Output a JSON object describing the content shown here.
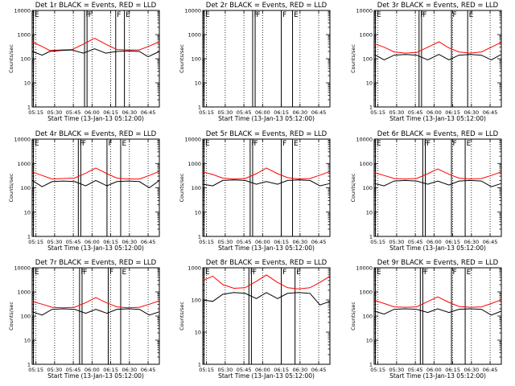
{
  "colors": {
    "black_series": "#000000",
    "red_series": "#ff0000",
    "axes": "#000000",
    "background": "#ffffff"
  },
  "chart_data": [
    {
      "type": "line",
      "title": "Det 1r BLACK = Events, RED = LLD",
      "xlabel": "Start Time (13-Jan-13 05:12:00)",
      "ylabel": "Counts/sec",
      "yscale": "log",
      "ylim": [
        1,
        10000
      ],
      "xlim": [
        "05:12",
        "06:54"
      ],
      "x_ticks": [
        "05:15",
        "05:30",
        "05:45",
        "06:00",
        "06:15",
        "06:30",
        "06:45"
      ],
      "y_ticks": [
        "1",
        "10",
        "100",
        "1000",
        "10000"
      ],
      "vertical_markers": [
        {
          "time": "05:13",
          "label": "E"
        },
        {
          "time": "05:54",
          "label": "F"
        },
        {
          "time": "05:56",
          "label": "F"
        },
        {
          "time": "06:19",
          "label": "F"
        },
        {
          "time": "06:26",
          "label": "E"
        }
      ],
      "series": [
        {
          "color": "red",
          "x": [
            "05:12",
            "05:20",
            "05:26",
            "05:35",
            "05:44",
            "05:53",
            "06:02",
            "06:11",
            "06:20",
            "06:29",
            "06:38",
            "06:45",
            "06:54"
          ],
          "y": [
            500,
            320,
            220,
            230,
            240,
            400,
            700,
            400,
            240,
            230,
            230,
            320,
            500
          ]
        },
        {
          "color": "black",
          "x": [
            "05:12",
            "05:20",
            "05:26",
            "05:35",
            "05:44",
            "05:53",
            "06:02",
            "06:11",
            "06:20",
            "06:29",
            "06:38",
            "06:45",
            "06:54"
          ],
          "y": [
            200,
            140,
            200,
            220,
            230,
            170,
            260,
            170,
            200,
            210,
            200,
            120,
            200
          ]
        }
      ]
    },
    {
      "type": "line",
      "title": "Det 2r BLACK = Events, RED = LLD",
      "xlabel": "Start Time (13-Jan-13 05:12:00)",
      "ylabel": "Counts/sec",
      "yscale": "log",
      "ylim": [
        1,
        10000
      ],
      "xlim": [
        "05:12",
        "06:54"
      ],
      "x_ticks": [
        "05:15",
        "05:30",
        "05:45",
        "06:00",
        "06:15",
        "06:30",
        "06:45"
      ],
      "y_ticks": [
        "1",
        "10",
        "100",
        "1000",
        "10000"
      ],
      "vertical_markers": [
        {
          "time": "05:13",
          "label": "E"
        },
        {
          "time": "05:52",
          "label": "F"
        },
        {
          "time": "05:54",
          "label": "F"
        },
        {
          "time": "06:15",
          "label": "F"
        },
        {
          "time": "06:24",
          "label": "E"
        }
      ],
      "series": []
    },
    {
      "type": "line",
      "title": "Det 3r BLACK = Events, RED = LLD",
      "xlabel": "Start Time (13-Jan-13 05:12:00)",
      "ylabel": "Counts/sec",
      "yscale": "log",
      "ylim": [
        1,
        10000
      ],
      "xlim": [
        "05:12",
        "06:54"
      ],
      "x_ticks": [
        "05:15",
        "05:30",
        "05:45",
        "06:00",
        "06:15",
        "06:30",
        "06:45"
      ],
      "y_ticks": [
        "1",
        "10",
        "100",
        "1000",
        "10000"
      ],
      "vertical_markers": [
        {
          "time": "05:13",
          "label": "E"
        },
        {
          "time": "05:48",
          "label": "F"
        },
        {
          "time": "05:50",
          "label": "F"
        },
        {
          "time": "06:14",
          "label": "F"
        },
        {
          "time": "06:27",
          "label": "E"
        }
      ],
      "series": [
        {
          "color": "red",
          "x": [
            "05:12",
            "05:20",
            "05:28",
            "05:37",
            "05:46",
            "05:55",
            "06:04",
            "06:12",
            "06:20",
            "06:29",
            "06:38",
            "06:46",
            "06:54"
          ],
          "y": [
            420,
            300,
            190,
            170,
            180,
            300,
            500,
            280,
            190,
            170,
            190,
            300,
            480
          ]
        },
        {
          "color": "black",
          "x": [
            "05:12",
            "05:20",
            "05:28",
            "05:37",
            "05:46",
            "05:55",
            "06:04",
            "06:12",
            "06:20",
            "06:29",
            "06:38",
            "06:46",
            "06:54"
          ],
          "y": [
            150,
            90,
            140,
            150,
            140,
            90,
            150,
            90,
            140,
            150,
            140,
            90,
            150
          ]
        }
      ]
    },
    {
      "type": "line",
      "title": "Det 4r BLACK = Events, RED = LLD",
      "xlabel": "Start Time (13-Jan-13 05:12:00)",
      "ylabel": "Counts/sec",
      "yscale": "log",
      "ylim": [
        1,
        10000
      ],
      "xlim": [
        "05:12",
        "06:54"
      ],
      "x_ticks": [
        "05:15",
        "05:30",
        "05:45",
        "06:00",
        "06:15",
        "06:30",
        "06:45"
      ],
      "y_ticks": [
        "1",
        "10",
        "100",
        "1000",
        "10000"
      ],
      "vertical_markers": [
        {
          "time": "05:13",
          "label": "E"
        },
        {
          "time": "05:49",
          "label": "F"
        },
        {
          "time": "05:51",
          "label": "F"
        },
        {
          "time": "06:12",
          "label": "F"
        },
        {
          "time": "06:23",
          "label": "E"
        }
      ],
      "series": [
        {
          "color": "red",
          "x": [
            "05:12",
            "05:20",
            "05:28",
            "05:37",
            "05:46",
            "05:55",
            "06:03",
            "06:12",
            "06:20",
            "06:29",
            "06:38",
            "06:46",
            "06:54"
          ],
          "y": [
            450,
            320,
            230,
            240,
            250,
            400,
            650,
            380,
            250,
            230,
            230,
            320,
            480
          ]
        },
        {
          "color": "black",
          "x": [
            "05:12",
            "05:20",
            "05:28",
            "05:37",
            "05:46",
            "05:55",
            "06:03",
            "06:12",
            "06:20",
            "06:29",
            "06:38",
            "06:46",
            "06:54"
          ],
          "y": [
            200,
            110,
            180,
            190,
            180,
            120,
            200,
            120,
            180,
            190,
            180,
            100,
            200
          ]
        }
      ]
    },
    {
      "type": "line",
      "title": "Det 5r BLACK = Events, RED = LLD",
      "xlabel": "Start Time (13-Jan-13 05:12:00)",
      "ylabel": "Counts/sec",
      "yscale": "log",
      "ylim": [
        1,
        10000
      ],
      "xlim": [
        "05:12",
        "06:54"
      ],
      "x_ticks": [
        "05:15",
        "05:30",
        "05:45",
        "06:00",
        "06:15",
        "06:30",
        "06:45"
      ],
      "y_ticks": [
        "1",
        "10",
        "100",
        "1000",
        "10000"
      ],
      "vertical_markers": [
        {
          "time": "05:13",
          "label": "E"
        },
        {
          "time": "05:50",
          "label": "F"
        },
        {
          "time": "05:52",
          "label": "F"
        },
        {
          "time": "06:15",
          "label": "F"
        },
        {
          "time": "06:24",
          "label": "E"
        }
      ],
      "series": [
        {
          "color": "red",
          "x": [
            "05:12",
            "05:20",
            "05:28",
            "05:37",
            "05:46",
            "05:55",
            "06:03",
            "06:12",
            "06:20",
            "06:29",
            "06:38",
            "06:46",
            "06:54"
          ],
          "y": [
            450,
            350,
            250,
            230,
            240,
            380,
            650,
            380,
            260,
            230,
            240,
            330,
            470
          ]
        },
        {
          "color": "black",
          "x": [
            "05:12",
            "05:20",
            "05:28",
            "05:37",
            "05:46",
            "05:55",
            "06:03",
            "06:12",
            "06:20",
            "06:29",
            "06:38",
            "06:46",
            "06:54"
          ],
          "y": [
            140,
            120,
            200,
            210,
            200,
            140,
            180,
            140,
            200,
            210,
            200,
            120,
            150
          ]
        }
      ]
    },
    {
      "type": "line",
      "title": "Det 6r BLACK = Events, RED = LLD",
      "xlabel": "Start Time (13-Jan-13 05:12:00)",
      "ylabel": "Counts/sec",
      "yscale": "log",
      "ylim": [
        1,
        10000
      ],
      "xlim": [
        "05:12",
        "06:54"
      ],
      "x_ticks": [
        "05:15",
        "05:30",
        "05:45",
        "06:00",
        "06:15",
        "06:30",
        "06:45"
      ],
      "y_ticks": [
        "1",
        "10",
        "100",
        "1000",
        "10000"
      ],
      "vertical_markers": [
        {
          "time": "05:13",
          "label": "E"
        },
        {
          "time": "05:51",
          "label": "F"
        },
        {
          "time": "05:53",
          "label": "F"
        },
        {
          "time": "06:14",
          "label": "F"
        },
        {
          "time": "06:25",
          "label": "E"
        }
      ],
      "series": [
        {
          "color": "red",
          "x": [
            "05:12",
            "05:20",
            "05:28",
            "05:37",
            "05:46",
            "05:55",
            "06:03",
            "06:12",
            "06:20",
            "06:29",
            "06:38",
            "06:46",
            "06:54"
          ],
          "y": [
            420,
            320,
            240,
            230,
            240,
            380,
            600,
            360,
            250,
            230,
            240,
            320,
            450
          ]
        },
        {
          "color": "black",
          "x": [
            "05:12",
            "05:20",
            "05:28",
            "05:37",
            "05:46",
            "05:55",
            "06:03",
            "06:12",
            "06:20",
            "06:29",
            "06:38",
            "06:46",
            "06:54"
          ],
          "y": [
            150,
            120,
            190,
            200,
            190,
            140,
            190,
            130,
            190,
            200,
            190,
            110,
            150
          ]
        }
      ]
    },
    {
      "type": "line",
      "title": "Det 7r BLACK = Events, RED = LLD",
      "xlabel": "Start Time (13-Jan-13 05:12:00)",
      "ylabel": "Counts/sec",
      "yscale": "log",
      "ylim": [
        1,
        10000
      ],
      "xlim": [
        "05:12",
        "06:54"
      ],
      "x_ticks": [
        "05:15",
        "05:30",
        "05:45",
        "06:00",
        "06:15",
        "06:30",
        "06:45"
      ],
      "y_ticks": [
        "1",
        "10",
        "100",
        "1000",
        "10000"
      ],
      "vertical_markers": [
        {
          "time": "05:13",
          "label": "E"
        },
        {
          "time": "05:50",
          "label": "F"
        },
        {
          "time": "05:52",
          "label": "F"
        },
        {
          "time": "06:13",
          "label": "F"
        },
        {
          "time": "06:23",
          "label": "E"
        }
      ],
      "series": [
        {
          "color": "red",
          "x": [
            "05:12",
            "05:20",
            "05:28",
            "05:37",
            "05:46",
            "05:55",
            "06:03",
            "06:12",
            "06:20",
            "06:29",
            "06:38",
            "06:46",
            "06:54"
          ],
          "y": [
            400,
            310,
            230,
            220,
            230,
            360,
            580,
            350,
            240,
            220,
            230,
            310,
            430
          ]
        },
        {
          "color": "black",
          "x": [
            "05:12",
            "05:20",
            "05:28",
            "05:37",
            "05:46",
            "05:55",
            "06:03",
            "06:12",
            "06:20",
            "06:29",
            "06:38",
            "06:46",
            "06:54"
          ],
          "y": [
            150,
            110,
            190,
            200,
            190,
            130,
            190,
            130,
            190,
            200,
            190,
            110,
            150
          ]
        }
      ]
    },
    {
      "type": "line",
      "title": "Det 8r BLACK = Events, RED = LLD",
      "xlabel": "Start Time (13-Jan-13 05:12:00)",
      "ylabel": "Counts/sec",
      "yscale": "log",
      "ylim": [
        1,
        1000
      ],
      "xlim": [
        "05:12",
        "06:54"
      ],
      "x_ticks": [
        "05:15",
        "05:30",
        "05:45",
        "06:00",
        "06:15",
        "06:30",
        "06:45"
      ],
      "y_ticks": [
        "1",
        "10",
        "100",
        "1000"
      ],
      "vertical_markers": [
        {
          "time": "05:13",
          "label": "E"
        },
        {
          "time": "05:49",
          "label": "F"
        },
        {
          "time": "05:51",
          "label": "F"
        },
        {
          "time": "06:15",
          "label": "F"
        },
        {
          "time": "06:26",
          "label": "E"
        }
      ],
      "series": [
        {
          "color": "red",
          "x": [
            "05:12",
            "05:20",
            "05:28",
            "05:37",
            "05:46",
            "05:55",
            "06:03",
            "06:12",
            "06:20",
            "06:29",
            "06:38",
            "06:46",
            "06:54"
          ],
          "y": [
            400,
            550,
            300,
            230,
            240,
            380,
            600,
            350,
            240,
            220,
            240,
            350,
            550
          ]
        },
        {
          "color": "black",
          "x": [
            "05:12",
            "05:20",
            "05:28",
            "05:37",
            "05:46",
            "05:55",
            "06:03",
            "06:12",
            "06:20",
            "06:29",
            "06:38",
            "06:46",
            "06:54"
          ],
          "y": [
            100,
            90,
            150,
            170,
            160,
            110,
            170,
            110,
            160,
            170,
            160,
            70,
            90
          ]
        }
      ]
    },
    {
      "type": "line",
      "title": "Det 9r BLACK = Events, RED = LLD",
      "xlabel": "Start Time (13-Jan-13 05:12:00)",
      "ylabel": "Counts/sec",
      "yscale": "log",
      "ylim": [
        1,
        10000
      ],
      "xlim": [
        "05:12",
        "06:54"
      ],
      "x_ticks": [
        "05:15",
        "05:30",
        "05:45",
        "06:00",
        "06:15",
        "06:30",
        "06:45"
      ],
      "y_ticks": [
        "1",
        "10",
        "100",
        "1000",
        "10000"
      ],
      "vertical_markers": [
        {
          "time": "05:13",
          "label": "E"
        },
        {
          "time": "05:49",
          "label": "F"
        },
        {
          "time": "05:51",
          "label": "F"
        },
        {
          "time": "06:14",
          "label": "F"
        },
        {
          "time": "06:25",
          "label": "E"
        }
      ],
      "series": [
        {
          "color": "red",
          "x": [
            "05:12",
            "05:20",
            "05:28",
            "05:37",
            "05:46",
            "05:55",
            "06:03",
            "06:12",
            "06:20",
            "06:29",
            "06:38",
            "06:46",
            "06:54"
          ],
          "y": [
            450,
            330,
            240,
            230,
            240,
            400,
            620,
            370,
            250,
            230,
            240,
            330,
            470
          ]
        },
        {
          "color": "black",
          "x": [
            "05:12",
            "05:20",
            "05:28",
            "05:37",
            "05:46",
            "05:55",
            "06:03",
            "06:12",
            "06:20",
            "06:29",
            "06:38",
            "06:46",
            "06:54"
          ],
          "y": [
            160,
            120,
            190,
            200,
            190,
            140,
            200,
            140,
            190,
            200,
            190,
            110,
            160
          ]
        }
      ]
    }
  ]
}
